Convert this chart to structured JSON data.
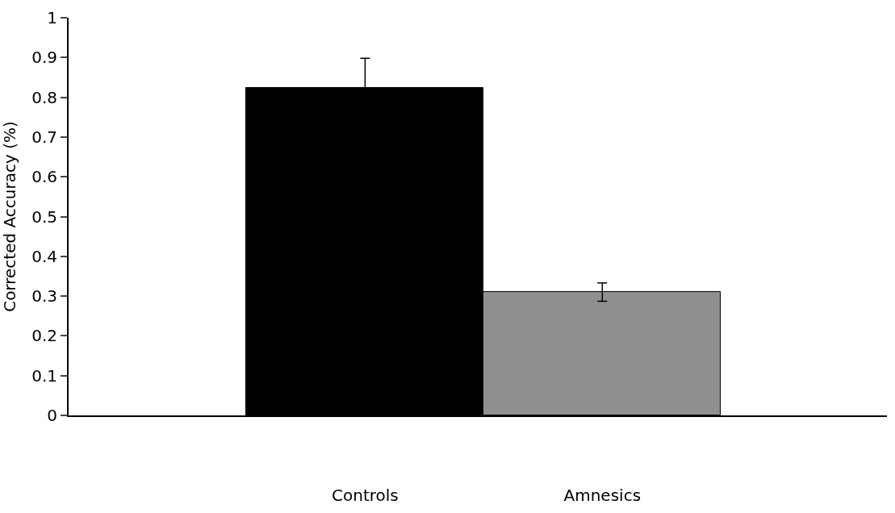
{
  "chart_data": {
    "type": "bar",
    "ylabel": "Corrected Accuracy (%)",
    "categories": [
      "Controls",
      "Amnesics"
    ],
    "values": [
      0.823,
      0.31
    ],
    "colors": [
      "#000000",
      "#8f8f8f"
    ],
    "errors": [
      0.075,
      0.023
    ],
    "ylim": [
      0,
      1
    ],
    "yticks": [
      0,
      0.1,
      0.2,
      0.3,
      0.4,
      0.5,
      0.6,
      0.7,
      0.8,
      0.9,
      1
    ],
    "legend": false
  }
}
